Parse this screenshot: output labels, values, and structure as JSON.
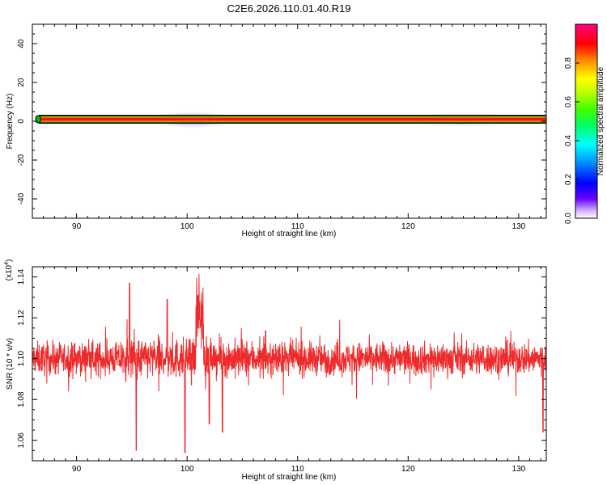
{
  "figure": {
    "title": "C2E6.2026.110.01.40.R19"
  },
  "chart_data": [
    {
      "type": "heatmap",
      "xlabel": "Height of straight line (km)",
      "ylabel": "Frequency (Hz)",
      "xlim": [
        86,
        132.5
      ],
      "ylim": [
        -50,
        50
      ],
      "xticks": [
        90,
        100,
        110,
        120,
        130
      ],
      "yticks": [
        -40,
        -20,
        0,
        20,
        40
      ],
      "colorbar": {
        "label": "Normalized spectral amplitude",
        "range": [
          0,
          1
        ],
        "ticks": [
          0.0,
          0.2,
          0.4,
          0.6,
          0.8
        ],
        "tick_labels": [
          "0.0",
          "0.2",
          "0.4",
          "0.6",
          "0.8"
        ],
        "colormap": [
          "#ffffff",
          "#d0b0ff",
          "#6a00ff",
          "#0000ff",
          "#00a0ff",
          "#00ffff",
          "#00ff60",
          "#40ff00",
          "#c0ff00",
          "#ffff00",
          "#ff8000",
          "#ff0000",
          "#ff0080"
        ]
      },
      "band": {
        "center_frequency": 0,
        "peak_amplitude": 1.0,
        "weak_sidelobes": [
          {
            "x_from": 97,
            "x_to": 104,
            "amplitude": 0.25
          },
          {
            "x_from": 120,
            "x_to": 130,
            "amplitude": 0.15
          }
        ]
      }
    },
    {
      "type": "line",
      "xlabel": "Height of straight line (km)",
      "ylabel": "SNR (10 * v/v)",
      "y_multiplier_label": "(x10",
      "y_multiplier_exponent": "4",
      "y_multiplier_close": ")",
      "xlim": [
        86,
        132.5
      ],
      "ylim": [
        1.05,
        1.145
      ],
      "xticks": [
        90,
        100,
        110,
        120,
        130
      ],
      "yticks": [
        1.06,
        1.08,
        1.1,
        1.12,
        1.14
      ],
      "ytick_labels": [
        "1.06",
        "1.08",
        "1.10",
        "1.12",
        "1.14"
      ],
      "series": [
        {
          "color": "#ee2a2a",
          "baseline": 1.1,
          "noise_amplitude": 0.007,
          "x_range": [
            86,
            132.5
          ],
          "notable_points": [
            {
              "x": 94.8,
              "y": 1.137
            },
            {
              "x": 95.4,
              "y": 1.055
            },
            {
              "x": 98.2,
              "y": 1.129
            },
            {
              "x": 99.8,
              "y": 1.054
            },
            {
              "x": 101.0,
              "y": 1.145
            },
            {
              "x": 101.3,
              "y": 1.142
            },
            {
              "x": 102.0,
              "y": 1.068
            },
            {
              "x": 103.2,
              "y": 1.064
            },
            {
              "x": 132.2,
              "y": 1.064
            }
          ]
        }
      ]
    }
  ]
}
